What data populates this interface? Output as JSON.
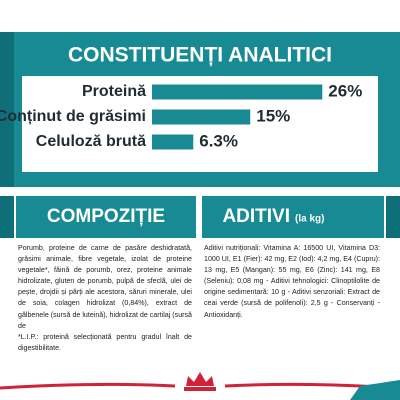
{
  "chart_data": {
    "type": "bar",
    "orientation": "horizontal",
    "title": "CONSTITUENȚI ANALITICI",
    "categories": [
      "Proteină",
      "Conținut de grăsimi",
      "Celuloză brută"
    ],
    "values": [
      26,
      15,
      6.3
    ],
    "value_labels": [
      "26%",
      "15%",
      "6.3%"
    ],
    "color": "#188a94"
  },
  "composition": {
    "title": "COMPOZIȚIE",
    "text": "Porumb, proteine de carne de pasăre deshidratată, grăsimi animale, fibre vegetale, izolat de proteine vegetale*, făină de porumb, orez, proteine animale hidrolizate, gluten de porumb, pulpă de sfeclă, ulei de pește, drojdii și părți ale acestora, săruri minerale, ulei de soia, colagen hidrolizat (0,84%), extract de gălbenele (sursă de luteină), hidrolizat de cartilaj (sursă de",
    "note": "*L.I.P.: proteină selecționată pentru gradul înalt de digestibilitate."
  },
  "additives": {
    "title": "ADITIVI",
    "unit": "(la kg)",
    "text": "Aditivi nutriționali: Vitamina A: 16500 UI, Vitamina D3: 1000 UI, E1 (Fier): 42 mg, E2 (Iod): 4,2 mg, E4 (Cupru): 13 mg, E5 (Mangan): 55 mg, E6 (Zinc): 141 mg, E8 (Seleniu): 0,08 mg - Aditivi tehnologici: Clinoptilolite de origine sedimentară: 10 g - Aditivi senzoriali: Extract de ceai verde (sursă de polifenoli): 2,5 g - Conservanți - Antioxidanți."
  }
}
